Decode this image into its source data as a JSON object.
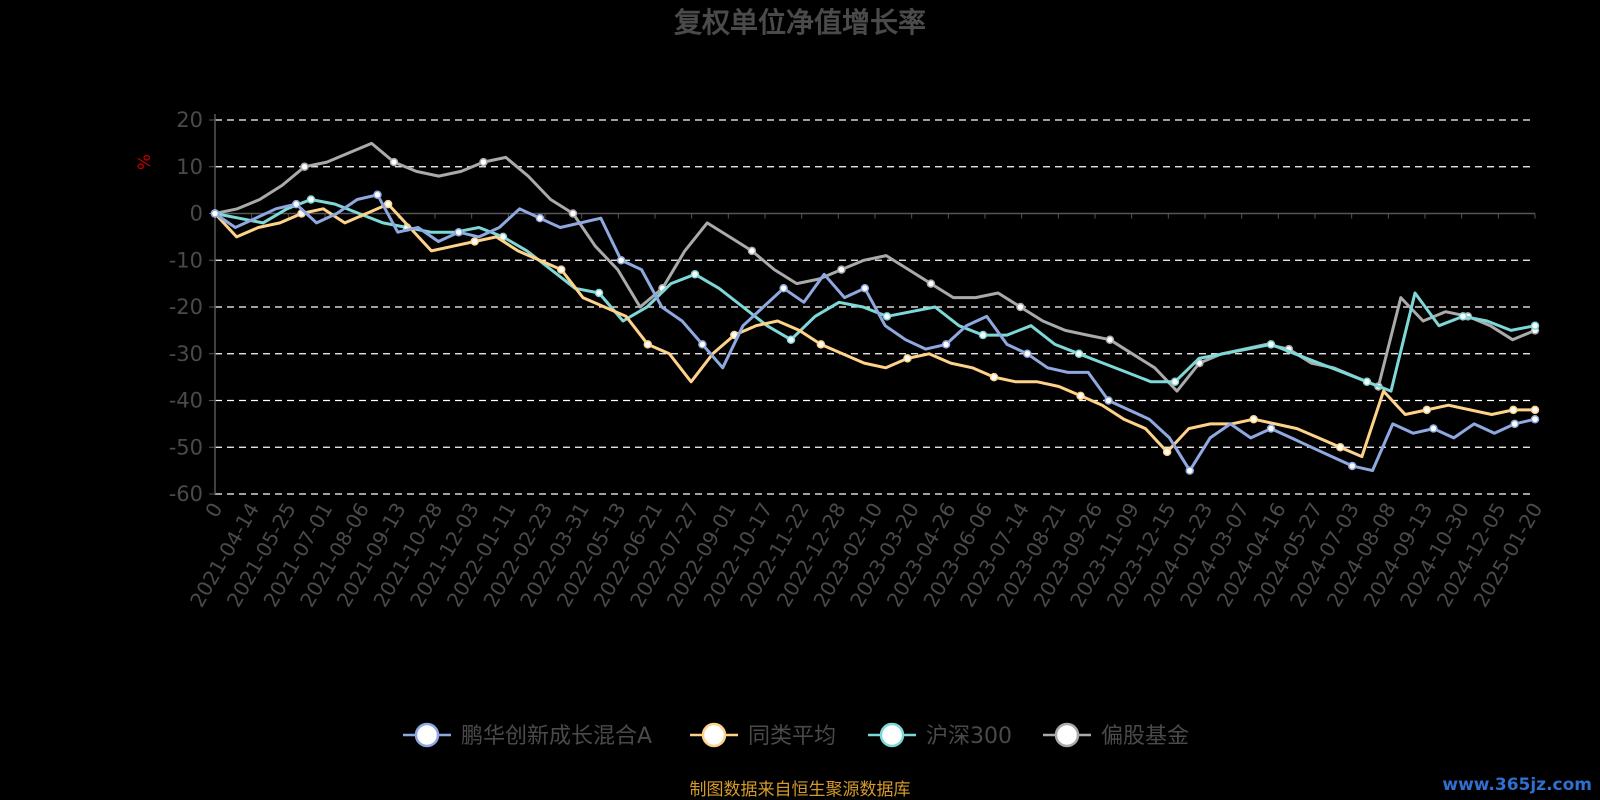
{
  "chart_data": {
    "type": "line",
    "title": "复权单位净值增长率",
    "ylabel": "%",
    "ylim": [
      -60,
      20
    ],
    "yticks": [
      20,
      10,
      0,
      -10,
      -20,
      -30,
      -40,
      -50,
      -60
    ],
    "grid": true,
    "legend_position": "bottom",
    "x_tick_labels": [
      "0",
      "2021-04-14",
      "2021-05-25",
      "2021-07-01",
      "2021-08-06",
      "2021-09-13",
      "2021-10-28",
      "2021-12-03",
      "2022-01-11",
      "2022-02-23",
      "2022-03-31",
      "2022-05-13",
      "2022-06-21",
      "2022-07-27",
      "2022-09-01",
      "2022-10-17",
      "2022-11-22",
      "2022-12-28",
      "2023-02-10",
      "2023-03-20",
      "2023-04-26",
      "2023-06-06",
      "2023-07-14",
      "2023-08-21",
      "2023-09-26",
      "2023-11-09",
      "2023-12-15",
      "2024-01-23",
      "2024-03-07",
      "2024-04-16",
      "2024-05-27",
      "2024-07-03",
      "2024-08-08",
      "2024-09-13",
      "2024-10-30",
      "2024-12-05",
      "2025-01-20"
    ],
    "series": [
      {
        "name": "鹏华创新成长混合A",
        "color": "#8fa8e0",
        "values": [
          0,
          -3,
          -1,
          1,
          2,
          -2,
          0,
          3,
          4,
          -4,
          -3,
          -6,
          -4,
          -5,
          -3,
          1,
          -1,
          -3,
          -2,
          -1,
          -10,
          -12,
          -20,
          -23,
          -28,
          -33,
          -24,
          -20,
          -16,
          -19,
          -13,
          -18,
          -16,
          -24,
          -27,
          -29,
          -28,
          -24,
          -22,
          -28,
          -30,
          -33,
          -34,
          -34,
          -40,
          -42,
          -44,
          -48,
          -55,
          -48,
          -45,
          -48,
          -46,
          -48,
          -50,
          -52,
          -54,
          -55,
          -45,
          -47,
          -46,
          -48,
          -45,
          -47,
          -45,
          -44
        ]
      },
      {
        "name": "同类平均",
        "color": "#ffd28a",
        "values": [
          0,
          -5,
          -3,
          -2,
          0,
          1,
          -2,
          0,
          2,
          -3,
          -8,
          -7,
          -6,
          -5,
          -8,
          -10,
          -12,
          -18,
          -20,
          -22,
          -28,
          -30,
          -36,
          -30,
          -26,
          -24,
          -23,
          -25,
          -28,
          -30,
          -32,
          -33,
          -31,
          -30,
          -32,
          -33,
          -35,
          -36,
          -36,
          -37,
          -39,
          -41,
          -44,
          -46,
          -51,
          -46,
          -45,
          -45,
          -44,
          -45,
          -46,
          -48,
          -50,
          -52,
          -38,
          -43,
          -42,
          -41,
          -42,
          -43,
          -42,
          -42
        ]
      },
      {
        "name": "沪深300",
        "color": "#7fd8d8",
        "values": [
          0,
          -1,
          -2,
          1,
          3,
          2,
          0,
          -2,
          -3,
          -4,
          -4,
          -3,
          -5,
          -8,
          -12,
          -16,
          -17,
          -23,
          -20,
          -15,
          -13,
          -16,
          -20,
          -24,
          -27,
          -22,
          -19,
          -20,
          -22,
          -21,
          -20,
          -24,
          -26,
          -26,
          -24,
          -28,
          -30,
          -32,
          -34,
          -36,
          -36,
          -31,
          -30,
          -29,
          -28,
          -30,
          -32,
          -34,
          -36,
          -38,
          -17,
          -24,
          -22,
          -23,
          -25,
          -24
        ]
      },
      {
        "name": "偏股基金",
        "color": "#aaaaaa",
        "values": [
          0,
          1,
          3,
          6,
          10,
          11,
          13,
          15,
          11,
          9,
          8,
          9,
          11,
          12,
          8,
          3,
          0,
          -7,
          -12,
          -20,
          -16,
          -8,
          -2,
          -5,
          -8,
          -12,
          -15,
          -14,
          -12,
          -10,
          -9,
          -12,
          -15,
          -18,
          -18,
          -17,
          -20,
          -23,
          -25,
          -26,
          -27,
          -30,
          -33,
          -38,
          -32,
          -30,
          -29,
          -28,
          -29,
          -32,
          -33,
          -35,
          -37,
          -18,
          -23,
          -21,
          -22,
          -24,
          -27,
          -25
        ]
      }
    ]
  },
  "footer": {
    "source": "制图数据来自恒生聚源数据库",
    "watermark": "www.365jz.com"
  }
}
